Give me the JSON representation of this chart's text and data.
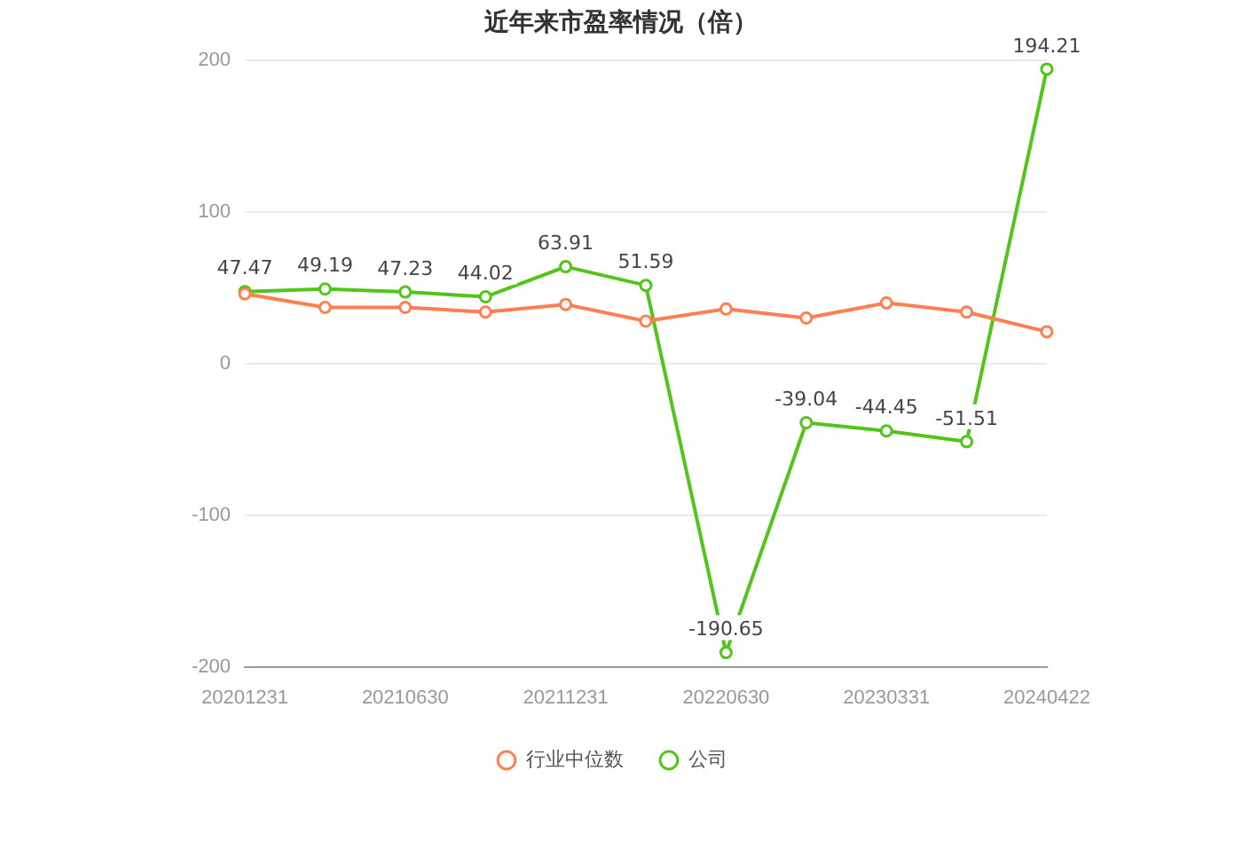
{
  "chart_data": {
    "type": "line",
    "title": "近年来市盈率情况（倍）",
    "categories": [
      "20201231",
      null,
      "20210630",
      null,
      "20211231",
      null,
      "20220630",
      null,
      "20230331",
      null,
      "20240422"
    ],
    "series": [
      {
        "name": "公司",
        "color": "#52c41a",
        "values": [
          47.47,
          49.19,
          47.23,
          44.02,
          63.91,
          51.59,
          -190.65,
          -39.04,
          -44.45,
          -51.51,
          194.21
        ],
        "value_labels": [
          "47.47",
          "49.19",
          "47.23",
          "44.02",
          "63.91",
          "51.59",
          "-190.65",
          "-39.04",
          "-44.45",
          "-51.51",
          "194.21"
        ]
      },
      {
        "name": "行业中位数",
        "color": "#ff7f50",
        "values": [
          46,
          37,
          37,
          34,
          39,
          28,
          36,
          30,
          40,
          34,
          21
        ]
      }
    ],
    "ylim": [
      -200,
      200
    ],
    "yticks": [
      -200,
      -100,
      0,
      100,
      200
    ],
    "grid": "y",
    "legend": "bottom",
    "marker": "circle",
    "line_style": "solid"
  }
}
